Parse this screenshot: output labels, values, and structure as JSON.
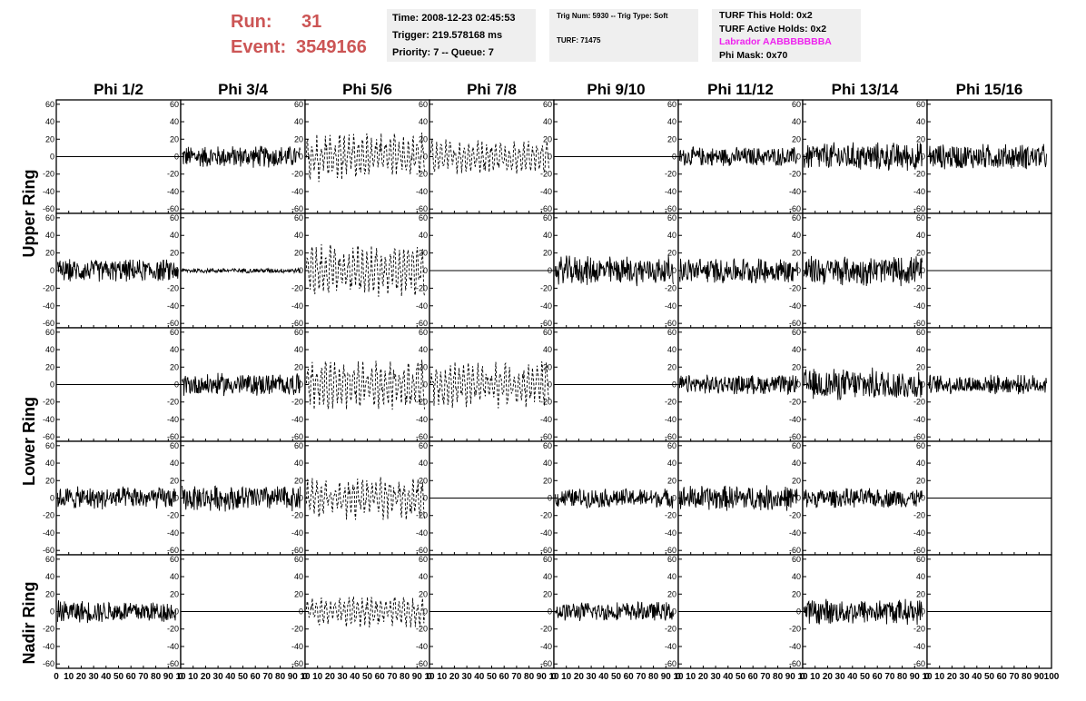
{
  "header": {
    "run_label": "Run:",
    "run_value": "31",
    "event_label": "Event:",
    "event_value": "3549166"
  },
  "info_time": {
    "line1": "Time: 2008-12-23 02:45:53",
    "line2": "Trigger: 219.578168 ms",
    "line3": "Priority: 7 -- Queue: 7"
  },
  "info_trig": {
    "line1": "Trig Num: 5930 -- Trig Type: Soft",
    "line2": "TURF: 71475"
  },
  "info_turf": {
    "line1": "TURF This Hold: 0x2",
    "line2": "TURF Active Holds: 0x2",
    "line3": "Labrador AABBBBBBBA",
    "line4": "Phi Mask: 0x70",
    "labrador_color": "#ee22ee"
  },
  "colors": {
    "run_text": "#cc5555",
    "info_box_bg": "#efefef",
    "trace": "#000000"
  },
  "chart_data": {
    "type": "line",
    "columns": [
      "Phi 1/2",
      "Phi 3/4",
      "Phi 5/6",
      "Phi 7/8",
      "Phi 9/10",
      "Phi 11/12",
      "Phi 13/14",
      "Phi 15/16"
    ],
    "ring_labels": [
      "Upper Ring",
      "Lower Ring",
      "Nadir Ring"
    ],
    "xlim": [
      0,
      100
    ],
    "ylim": [
      -65,
      65
    ],
    "x_ticks": [
      0,
      10,
      20,
      30,
      40,
      50,
      60,
      70,
      80,
      90,
      100
    ],
    "y_ticks": [
      -60,
      -40,
      -20,
      0,
      20,
      40,
      60
    ],
    "x_tick_labels_per_panel": [
      "0",
      "10",
      "20",
      "30",
      "40",
      "50",
      "60",
      "70",
      "80",
      "90",
      "10"
    ],
    "x_tick_labels_last_panel": [
      "0",
      "10",
      "20",
      "30",
      "40",
      "50",
      "60",
      "70",
      "80",
      "90",
      "100"
    ],
    "panel_rows": [
      [
        {
          "style": "flat"
        },
        {
          "style": "solid",
          "amplitude": 14
        },
        {
          "style": "dashed",
          "amplitude": 26
        },
        {
          "style": "dashed",
          "amplitude": 18
        },
        {
          "style": "flat"
        },
        {
          "style": "solid",
          "amplitude": 12
        },
        {
          "style": "solid",
          "amplitude": 18
        },
        {
          "style": "solid",
          "amplitude": 16
        }
      ],
      [
        {
          "style": "solid",
          "amplitude": 14
        },
        {
          "style": "solid",
          "amplitude": 3
        },
        {
          "style": "dashed",
          "amplitude": 28
        },
        {
          "style": "flat"
        },
        {
          "style": "solid",
          "amplitude": 18
        },
        {
          "style": "solid",
          "amplitude": 16
        },
        {
          "style": "solid",
          "amplitude": 18
        },
        {
          "style": "flat"
        }
      ],
      [
        {
          "style": "flat"
        },
        {
          "style": "solid",
          "amplitude": 14
        },
        {
          "style": "dashed",
          "amplitude": 26
        },
        {
          "style": "dashed",
          "amplitude": 24
        },
        {
          "style": "flat"
        },
        {
          "style": "solid",
          "amplitude": 12
        },
        {
          "style": "solid",
          "amplitude": 20
        },
        {
          "style": "solid",
          "amplitude": 12
        }
      ],
      [
        {
          "style": "solid",
          "amplitude": 14
        },
        {
          "style": "solid",
          "amplitude": 16
        },
        {
          "style": "dashed",
          "amplitude": 22
        },
        {
          "style": "flat"
        },
        {
          "style": "solid",
          "amplitude": 12
        },
        {
          "style": "solid",
          "amplitude": 16
        },
        {
          "style": "solid",
          "amplitude": 12
        },
        {
          "style": "flat"
        }
      ],
      [
        {
          "style": "solid",
          "amplitude": 14
        },
        {
          "style": "flat"
        },
        {
          "style": "dashed",
          "amplitude": 16
        },
        {
          "style": "flat"
        },
        {
          "style": "solid",
          "amplitude": 12
        },
        {
          "style": "flat"
        },
        {
          "style": "solid",
          "amplitude": 16
        },
        {
          "style": "flat"
        }
      ]
    ]
  }
}
